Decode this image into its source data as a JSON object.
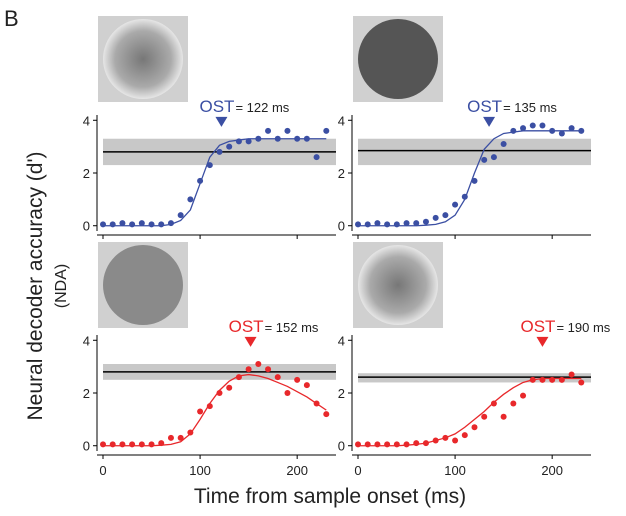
{
  "panel_label": "B",
  "ylabel": "Neural decoder accuracy (d')",
  "ylabel_sub": "(NDA)",
  "xlabel": "Time from sample onset (ms)",
  "chart_data": [
    {
      "type": "scatter",
      "color": "#3b4fa3",
      "ost_text": "OST",
      "ost": 122,
      "ost_label": "= 122 ms",
      "band": [
        2.3,
        3.3
      ],
      "reference": 2.8,
      "show_xtick_labels": false,
      "x": [
        0,
        10,
        20,
        30,
        40,
        50,
        60,
        70,
        80,
        90,
        100,
        110,
        120,
        130,
        140,
        150,
        160,
        170,
        180,
        190,
        200,
        210,
        220,
        230
      ],
      "values": [
        0.05,
        0.05,
        0.1,
        0.05,
        0.1,
        0.05,
        0.05,
        0.1,
        0.4,
        1.0,
        1.7,
        2.3,
        2.8,
        3.0,
        3.2,
        3.2,
        3.3,
        3.6,
        3.3,
        3.6,
        3.3,
        3.3,
        2.6,
        3.6
      ],
      "fit": [
        0,
        0,
        0,
        0,
        0,
        0,
        0,
        0.05,
        0.2,
        0.6,
        1.6,
        2.6,
        3.05,
        3.2,
        3.25,
        3.3,
        3.3,
        3.3,
        3.3,
        3.3,
        3.3,
        3.3,
        3.3,
        3.3
      ],
      "xlim": [
        0,
        240
      ],
      "ylim": [
        -0.2,
        4.2
      ],
      "xticks": [
        0,
        100,
        200
      ],
      "yticks": [
        0,
        2,
        4
      ]
    },
    {
      "type": "scatter",
      "color": "#3b4fa3",
      "ost_text": "OST",
      "ost": 135,
      "ost_label": "= 135 ms",
      "band": [
        2.3,
        3.3
      ],
      "reference": 2.85,
      "show_xtick_labels": false,
      "x": [
        0,
        10,
        20,
        30,
        40,
        50,
        60,
        70,
        80,
        90,
        100,
        110,
        120,
        130,
        140,
        150,
        160,
        170,
        180,
        190,
        200,
        210,
        220,
        230
      ],
      "values": [
        0.05,
        0.05,
        0.1,
        0.05,
        0.05,
        0.1,
        0.1,
        0.15,
        0.3,
        0.4,
        0.8,
        1.1,
        1.7,
        2.5,
        2.6,
        3.1,
        3.6,
        3.7,
        3.8,
        3.8,
        3.6,
        3.5,
        3.7,
        3.6
      ],
      "fit": [
        0,
        0,
        0,
        0,
        0,
        0,
        0,
        0.02,
        0.05,
        0.15,
        0.4,
        1.0,
        2.0,
        2.9,
        3.3,
        3.5,
        3.55,
        3.6,
        3.6,
        3.6,
        3.6,
        3.6,
        3.6,
        3.6
      ],
      "xlim": [
        0,
        240
      ],
      "ylim": [
        -0.2,
        4.2
      ],
      "xticks": [
        0,
        100,
        200
      ],
      "yticks": [
        0,
        2,
        4
      ]
    },
    {
      "type": "scatter",
      "color": "#e8282b",
      "ost_text": "OST",
      "ost": 152,
      "ost_label": "= 152 ms",
      "band": [
        2.5,
        3.1
      ],
      "reference": 2.8,
      "show_xtick_labels": true,
      "x": [
        0,
        10,
        20,
        30,
        40,
        50,
        60,
        70,
        80,
        90,
        100,
        110,
        120,
        130,
        140,
        150,
        160,
        170,
        180,
        190,
        200,
        210,
        220,
        230
      ],
      "values": [
        0.05,
        0.05,
        0.05,
        0.05,
        0.05,
        0.05,
        0.1,
        0.3,
        0.3,
        0.5,
        1.3,
        1.5,
        2.0,
        2.2,
        2.6,
        2.9,
        3.1,
        2.9,
        2.6,
        2.0,
        2.5,
        2.3,
        1.6,
        1.2
      ],
      "fit": [
        0,
        0,
        0,
        0,
        0,
        0,
        0.02,
        0.05,
        0.15,
        0.45,
        1.0,
        1.6,
        2.1,
        2.45,
        2.65,
        2.7,
        2.65,
        2.55,
        2.4,
        2.25,
        2.05,
        1.85,
        1.6,
        1.35
      ],
      "xlim": [
        0,
        240
      ],
      "ylim": [
        -0.2,
        4.2
      ],
      "xticks": [
        0,
        100,
        200
      ],
      "yticks": [
        0,
        2,
        4
      ]
    },
    {
      "type": "scatter",
      "color": "#e8282b",
      "ost_text": "OST",
      "ost": 190,
      "ost_label": "= 190 ms",
      "band": [
        2.4,
        2.75
      ],
      "reference": 2.6,
      "show_xtick_labels": true,
      "x": [
        0,
        10,
        20,
        30,
        40,
        50,
        60,
        70,
        80,
        90,
        100,
        110,
        120,
        130,
        140,
        150,
        160,
        170,
        180,
        190,
        200,
        210,
        220,
        230
      ],
      "values": [
        0.05,
        0.05,
        0.05,
        0.05,
        0.05,
        0.05,
        0.1,
        0.1,
        0.2,
        0.3,
        0.2,
        0.4,
        0.7,
        1.1,
        1.6,
        1.1,
        1.6,
        1.9,
        2.5,
        2.5,
        2.5,
        2.5,
        2.7,
        2.4
      ],
      "fit": [
        0,
        0,
        0,
        0,
        0,
        0.02,
        0.05,
        0.1,
        0.2,
        0.3,
        0.45,
        0.7,
        1.0,
        1.3,
        1.65,
        1.95,
        2.2,
        2.4,
        2.5,
        2.55,
        2.55,
        2.55,
        2.55,
        2.55
      ],
      "xlim": [
        0,
        240
      ],
      "ylim": [
        -0.2,
        4.2
      ],
      "xticks": [
        0,
        100,
        200
      ],
      "yticks": [
        0,
        2,
        4
      ]
    }
  ]
}
